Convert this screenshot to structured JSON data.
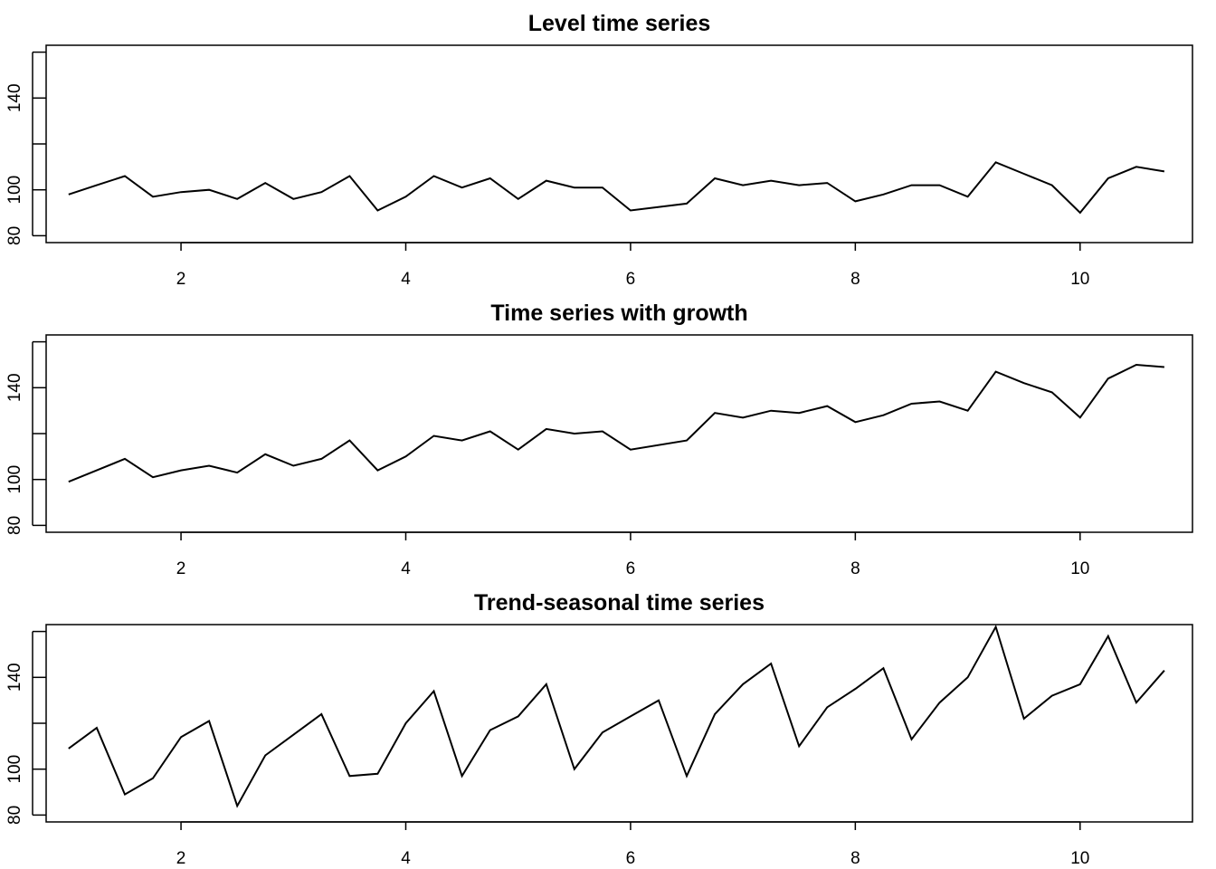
{
  "chart_data": [
    {
      "type": "line",
      "title": "Level time series",
      "xlabel": "",
      "ylabel": "",
      "xlim": [
        0.8,
        11.0
      ],
      "ylim": [
        77,
        163
      ],
      "x_ticks": [
        2,
        4,
        6,
        8,
        10
      ],
      "y_ticks": [
        80,
        100,
        140
      ],
      "grid": false,
      "series": [
        {
          "x": [
            1,
            1.25,
            1.5,
            1.75,
            2,
            2.25,
            2.5,
            2.75,
            3,
            3.25,
            3.5,
            3.75,
            4,
            4.25,
            4.5,
            4.75,
            5,
            5.25,
            5.5,
            5.75,
            6,
            6.5,
            6.75,
            7,
            7.25,
            7.5,
            7.75,
            8,
            8.25,
            8.5,
            8.75,
            9,
            9.25,
            9.5,
            9.75,
            10,
            10.25,
            10.5,
            10.75
          ],
          "values": [
            98,
            102,
            106,
            97,
            99,
            100,
            96,
            103,
            96,
            99,
            106,
            91,
            97,
            106,
            101,
            105,
            96,
            104,
            101,
            101,
            91,
            94,
            105,
            102,
            104,
            102,
            103,
            95,
            98,
            102,
            102,
            97,
            112,
            107,
            102,
            90,
            105,
            110,
            108
          ]
        }
      ]
    },
    {
      "type": "line",
      "title": "Time series with growth",
      "xlabel": "",
      "ylabel": "",
      "xlim": [
        0.8,
        11.0
      ],
      "ylim": [
        77,
        163
      ],
      "x_ticks": [
        2,
        4,
        6,
        8,
        10
      ],
      "y_ticks": [
        80,
        100,
        140
      ],
      "grid": false,
      "series": [
        {
          "x": [
            1,
            1.25,
            1.5,
            1.75,
            2,
            2.25,
            2.5,
            2.75,
            3,
            3.25,
            3.5,
            3.75,
            4,
            4.25,
            4.5,
            4.75,
            5,
            5.25,
            5.5,
            5.75,
            6,
            6.5,
            6.75,
            7,
            7.25,
            7.5,
            7.75,
            8,
            8.25,
            8.5,
            8.75,
            9,
            9.25,
            9.5,
            9.75,
            10,
            10.25,
            10.5,
            10.75
          ],
          "values": [
            99,
            104,
            109,
            101,
            104,
            106,
            103,
            111,
            106,
            109,
            117,
            104,
            110,
            119,
            117,
            121,
            113,
            122,
            120,
            121,
            113,
            117,
            129,
            127,
            130,
            129,
            132,
            125,
            128,
            133,
            134,
            130,
            147,
            142,
            138,
            127,
            144,
            150,
            149
          ]
        }
      ]
    },
    {
      "type": "line",
      "title": "Trend-seasonal time series",
      "xlabel": "",
      "ylabel": "",
      "xlim": [
        0.8,
        11.0
      ],
      "ylim": [
        77,
        163
      ],
      "x_ticks": [
        2,
        4,
        6,
        8,
        10
      ],
      "y_ticks": [
        80,
        100,
        140
      ],
      "grid": false,
      "series": [
        {
          "x": [
            1,
            1.25,
            1.5,
            1.75,
            2,
            2.25,
            2.5,
            2.75,
            3,
            3.25,
            3.5,
            3.75,
            4,
            4.25,
            4.5,
            4.75,
            5,
            5.25,
            5.5,
            5.75,
            6,
            6.25,
            6.5,
            6.75,
            7,
            7.25,
            7.5,
            7.75,
            8,
            8.25,
            8.5,
            8.75,
            9,
            9.25,
            9.5,
            9.75,
            10,
            10.25,
            10.5,
            10.75
          ],
          "values": [
            109,
            118,
            89,
            96,
            114,
            121,
            84,
            106,
            115,
            124,
            97,
            98,
            120,
            134,
            97,
            117,
            123,
            137,
            100,
            116,
            123,
            130,
            97,
            124,
            137,
            146,
            110,
            127,
            135,
            144,
            113,
            129,
            140,
            162,
            122,
            132,
            137,
            158,
            129,
            143
          ]
        }
      ]
    }
  ]
}
